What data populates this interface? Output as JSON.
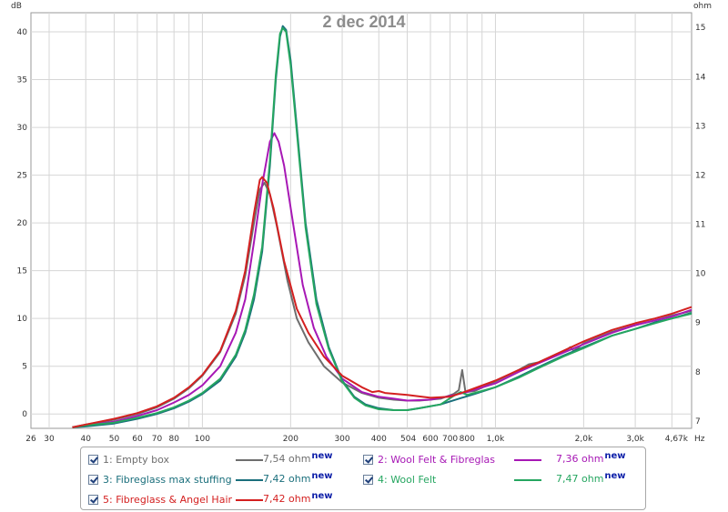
{
  "chart_data": {
    "type": "line",
    "title": "2 dec 2014",
    "y_left_unit": "dB",
    "y_right_unit": "ohm",
    "x_unit": "Hz",
    "x_scale": "log",
    "xlim": [
      26,
      4670
    ],
    "ylim_left": [
      -1.5,
      42
    ],
    "ylim_right": [
      6.85,
      15.3
    ],
    "grid": true,
    "y_left_ticks": [
      "0",
      "5",
      "10",
      "15",
      "20",
      "25",
      "30",
      "35",
      "40"
    ],
    "y_right_ticks": [
      "7",
      "8",
      "9",
      "10",
      "11",
      "12",
      "13",
      "14",
      "15"
    ],
    "x_tick_labels": [
      "26",
      "30",
      "40",
      "50",
      "60",
      "70",
      "80",
      "100",
      "200",
      "300",
      "400",
      "504",
      "600",
      "700",
      "800",
      "1,0k",
      "2,0k",
      "3,0k",
      "4,67k"
    ],
    "x_tick_values": [
      26,
      30,
      40,
      50,
      60,
      70,
      80,
      100,
      200,
      300,
      400,
      504,
      600,
      700,
      800,
      1000,
      2000,
      3000,
      4670
    ],
    "series": [
      {
        "name": "1: Empty box",
        "value_label": "7,54 ohm",
        "color": "#6e6e6e",
        "points": [
          [
            36,
            -1.4
          ],
          [
            40,
            -1.1
          ],
          [
            50,
            -0.6
          ],
          [
            60,
            0.0
          ],
          [
            70,
            0.7
          ],
          [
            80,
            1.6
          ],
          [
            90,
            2.7
          ],
          [
            100,
            4.0
          ],
          [
            115,
            6.5
          ],
          [
            130,
            10.5
          ],
          [
            140,
            14.5
          ],
          [
            150,
            20.0
          ],
          [
            157,
            23.5
          ],
          [
            163,
            24.2
          ],
          [
            170,
            23.0
          ],
          [
            180,
            19.5
          ],
          [
            195,
            14.0
          ],
          [
            210,
            10.0
          ],
          [
            230,
            7.5
          ],
          [
            260,
            5.0
          ],
          [
            300,
            3.3
          ],
          [
            350,
            2.2
          ],
          [
            400,
            1.7
          ],
          [
            450,
            1.5
          ],
          [
            500,
            1.4
          ],
          [
            550,
            1.4
          ],
          [
            650,
            1.6
          ],
          [
            720,
            2.1
          ],
          [
            750,
            2.5
          ],
          [
            770,
            4.6
          ],
          [
            790,
            2.3
          ],
          [
            850,
            2.4
          ],
          [
            1000,
            3.4
          ],
          [
            1200,
            4.6
          ],
          [
            1300,
            5.2
          ],
          [
            1400,
            5.4
          ],
          [
            1600,
            6.2
          ],
          [
            1750,
            6.7
          ],
          [
            1800,
            7.0
          ],
          [
            1850,
            6.6
          ],
          [
            2000,
            7.4
          ],
          [
            2500,
            8.6
          ],
          [
            3000,
            9.3
          ],
          [
            3500,
            9.8
          ],
          [
            4000,
            10.3
          ],
          [
            4670,
            10.8
          ]
        ]
      },
      {
        "name": "2: Wool Felt & Fibreglas",
        "value_label": "7,36 ohm",
        "color": "#a718b5",
        "points": [
          [
            36,
            -1.4
          ],
          [
            40,
            -1.2
          ],
          [
            50,
            -0.8
          ],
          [
            60,
            -0.2
          ],
          [
            70,
            0.4
          ],
          [
            80,
            1.2
          ],
          [
            90,
            2.0
          ],
          [
            100,
            3.0
          ],
          [
            115,
            5.0
          ],
          [
            130,
            8.5
          ],
          [
            140,
            12.0
          ],
          [
            150,
            18.0
          ],
          [
            160,
            24.0
          ],
          [
            170,
            28.5
          ],
          [
            176,
            29.4
          ],
          [
            182,
            28.5
          ],
          [
            190,
            26.0
          ],
          [
            205,
            19.5
          ],
          [
            220,
            13.5
          ],
          [
            240,
            9.0
          ],
          [
            265,
            6.0
          ],
          [
            300,
            3.7
          ],
          [
            350,
            2.3
          ],
          [
            400,
            1.8
          ],
          [
            450,
            1.6
          ],
          [
            500,
            1.4
          ],
          [
            600,
            1.5
          ],
          [
            700,
            1.9
          ],
          [
            800,
            2.3
          ],
          [
            1000,
            3.2
          ],
          [
            1200,
            4.4
          ],
          [
            1400,
            5.3
          ],
          [
            1700,
            6.4
          ],
          [
            2000,
            7.3
          ],
          [
            2500,
            8.5
          ],
          [
            3000,
            9.3
          ],
          [
            3500,
            9.8
          ],
          [
            4000,
            10.2
          ],
          [
            4670,
            10.9
          ]
        ]
      },
      {
        "name": "3: Fibreglass max stuffing",
        "value_label": "7,42 ohm",
        "color": "#1a6f7c",
        "points": [
          [
            36,
            -1.4
          ],
          [
            40,
            -1.3
          ],
          [
            50,
            -1.0
          ],
          [
            60,
            -0.5
          ],
          [
            70,
            0.0
          ],
          [
            80,
            0.6
          ],
          [
            90,
            1.3
          ],
          [
            100,
            2.1
          ],
          [
            115,
            3.5
          ],
          [
            130,
            6.0
          ],
          [
            140,
            8.5
          ],
          [
            150,
            12.0
          ],
          [
            160,
            17.0
          ],
          [
            170,
            26.0
          ],
          [
            178,
            35.0
          ],
          [
            184,
            39.5
          ],
          [
            188,
            40.6
          ],
          [
            193,
            40.2
          ],
          [
            200,
            37.0
          ],
          [
            210,
            30.0
          ],
          [
            225,
            20.0
          ],
          [
            245,
            12.0
          ],
          [
            270,
            7.0
          ],
          [
            300,
            3.5
          ],
          [
            330,
            1.8
          ],
          [
            360,
            1.0
          ],
          [
            400,
            0.6
          ],
          [
            450,
            0.4
          ],
          [
            500,
            0.4
          ],
          [
            550,
            0.6
          ],
          [
            650,
            1.0
          ],
          [
            750,
            1.6
          ],
          [
            850,
            2.1
          ],
          [
            1000,
            2.8
          ],
          [
            1200,
            3.9
          ],
          [
            1400,
            4.9
          ],
          [
            1700,
            6.1
          ],
          [
            2000,
            7.0
          ],
          [
            2500,
            8.2
          ],
          [
            3000,
            8.9
          ],
          [
            3500,
            9.6
          ],
          [
            4000,
            10.0
          ],
          [
            4670,
            10.6
          ]
        ]
      },
      {
        "name": "4: Wool Felt",
        "value_label": "7,47 ohm",
        "color": "#25a660",
        "points": [
          [
            36,
            -1.4
          ],
          [
            40,
            -1.2
          ],
          [
            50,
            -0.9
          ],
          [
            60,
            -0.4
          ],
          [
            70,
            0.1
          ],
          [
            80,
            0.7
          ],
          [
            90,
            1.4
          ],
          [
            100,
            2.2
          ],
          [
            115,
            3.7
          ],
          [
            130,
            6.2
          ],
          [
            140,
            8.8
          ],
          [
            150,
            12.5
          ],
          [
            160,
            17.5
          ],
          [
            170,
            26.5
          ],
          [
            178,
            35.5
          ],
          [
            184,
            39.8
          ],
          [
            188,
            40.4
          ],
          [
            193,
            40.0
          ],
          [
            200,
            36.5
          ],
          [
            210,
            29.5
          ],
          [
            225,
            19.5
          ],
          [
            245,
            11.5
          ],
          [
            270,
            6.8
          ],
          [
            300,
            3.4
          ],
          [
            330,
            1.7
          ],
          [
            360,
            0.9
          ],
          [
            400,
            0.5
          ],
          [
            450,
            0.4
          ],
          [
            500,
            0.4
          ],
          [
            550,
            0.6
          ],
          [
            650,
            1.0
          ],
          [
            720,
            1.9
          ],
          [
            760,
            2.3
          ],
          [
            800,
            2.0
          ],
          [
            850,
            2.2
          ],
          [
            1000,
            2.8
          ],
          [
            1200,
            3.8
          ],
          [
            1400,
            4.8
          ],
          [
            1700,
            6.0
          ],
          [
            2000,
            6.9
          ],
          [
            2500,
            8.2
          ],
          [
            3000,
            8.9
          ],
          [
            3500,
            9.5
          ],
          [
            4000,
            10.0
          ],
          [
            4670,
            10.5
          ]
        ]
      },
      {
        "name": "5: Fibreglass & Angel Hair",
        "value_label": "7,42 ohm",
        "color": "#d42020",
        "points": [
          [
            36,
            -1.4
          ],
          [
            40,
            -1.1
          ],
          [
            50,
            -0.5
          ],
          [
            60,
            0.1
          ],
          [
            70,
            0.8
          ],
          [
            80,
            1.7
          ],
          [
            90,
            2.8
          ],
          [
            100,
            4.1
          ],
          [
            115,
            6.6
          ],
          [
            130,
            10.8
          ],
          [
            140,
            15.0
          ],
          [
            150,
            21.0
          ],
          [
            157,
            24.5
          ],
          [
            160,
            24.8
          ],
          [
            166,
            24.2
          ],
          [
            175,
            21.5
          ],
          [
            190,
            16.0
          ],
          [
            210,
            11.0
          ],
          [
            230,
            8.5
          ],
          [
            260,
            6.0
          ],
          [
            300,
            4.0
          ],
          [
            350,
            2.8
          ],
          [
            380,
            2.3
          ],
          [
            400,
            2.4
          ],
          [
            420,
            2.2
          ],
          [
            500,
            2.0
          ],
          [
            600,
            1.7
          ],
          [
            700,
            1.8
          ],
          [
            800,
            2.4
          ],
          [
            1000,
            3.5
          ],
          [
            1200,
            4.6
          ],
          [
            1400,
            5.4
          ],
          [
            1700,
            6.6
          ],
          [
            2000,
            7.6
          ],
          [
            2500,
            8.8
          ],
          [
            3000,
            9.5
          ],
          [
            3500,
            10.0
          ],
          [
            4000,
            10.5
          ],
          [
            4670,
            11.2
          ]
        ]
      }
    ]
  },
  "legend": {
    "new_label": "new"
  }
}
